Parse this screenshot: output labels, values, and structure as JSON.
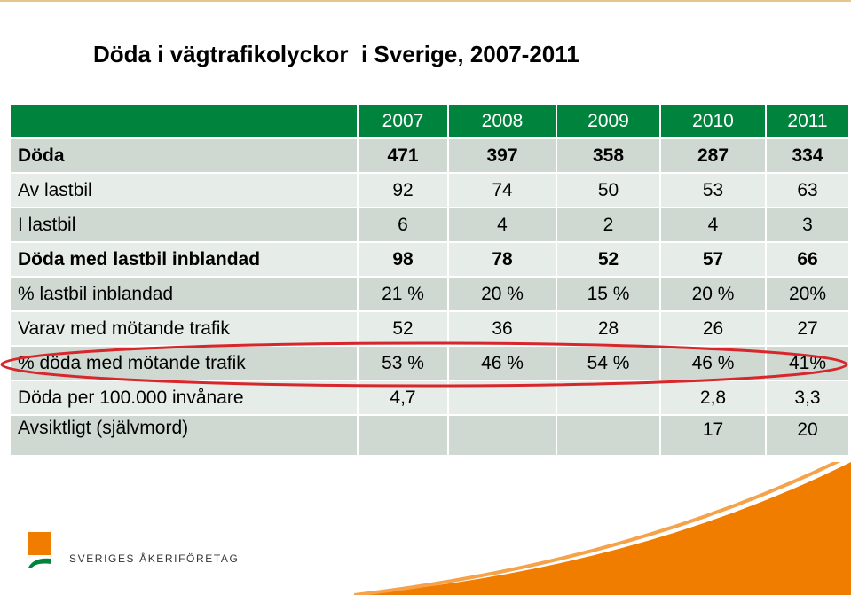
{
  "title": "Döda i vägtrafikolyckor  i Sverige, 2007-2011",
  "table": {
    "corner": "",
    "years": [
      "2007",
      "2008",
      "2009",
      "2010",
      "2011"
    ],
    "rows": [
      {
        "label": "Döda",
        "values": [
          "471",
          "397",
          "358",
          "287",
          "334"
        ],
        "bold": true
      },
      {
        "label": "Av lastbil",
        "values": [
          "92",
          "74",
          "50",
          "53",
          "63"
        ],
        "bold": false
      },
      {
        "label": "I lastbil",
        "values": [
          "6",
          "4",
          "2",
          "4",
          "3"
        ],
        "bold": false
      },
      {
        "label": "Döda med lastbil inblandad",
        "values": [
          "98",
          "78",
          "52",
          "57",
          "66"
        ],
        "bold": true
      },
      {
        "label": "% lastbil inblandad",
        "values": [
          "21 %",
          "20 %",
          "15 %",
          "20 %",
          "20%"
        ],
        "bold": false
      },
      {
        "label": "Varav med mötande trafik",
        "values": [
          "52",
          "36",
          "28",
          "26",
          "27"
        ],
        "bold": false
      },
      {
        "label": "% döda med mötande trafik",
        "values": [
          "53 %",
          "46 %",
          "54 %",
          "46 %",
          "41%"
        ],
        "bold": false,
        "highlighted": true
      },
      {
        "label": "Döda per 100.000 invånare",
        "values": [
          "4,7",
          "",
          "",
          "2,8",
          "3,3"
        ],
        "bold": false
      },
      {
        "label": "Avsiktligt (självmord)",
        "values": [
          "",
          "",
          "",
          "17",
          "20"
        ],
        "bold": false
      }
    ]
  },
  "logo": {
    "text": "SVERIGES ÅKERIFÖRETAG",
    "icon": "akeriforetag-logo-icon"
  },
  "colors": {
    "header_green": "#00843d",
    "row_dark": "#cfd9d1",
    "row_light": "#e6ece7",
    "highlight_red": "#d7262c",
    "brand_orange": "#f07d00"
  }
}
